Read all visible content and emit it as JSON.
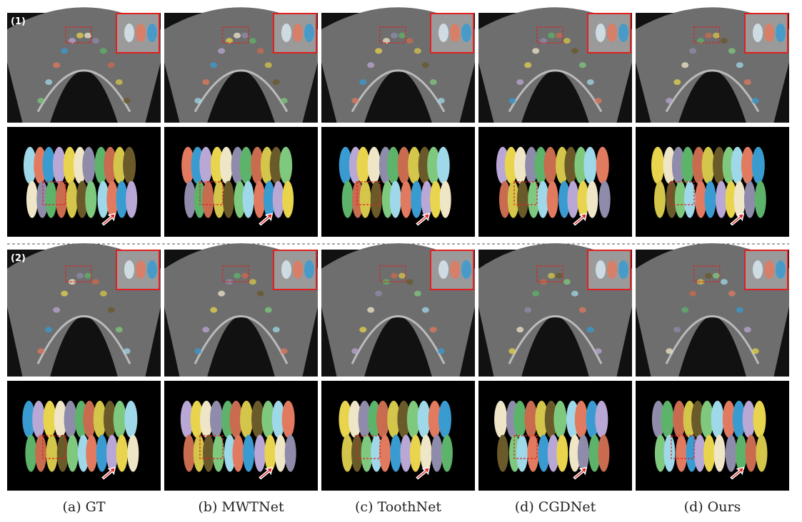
{
  "rows": [
    {
      "label": "(1)"
    },
    {
      "label": "(2)"
    }
  ],
  "columns": [
    {
      "caption": "(a) GT"
    },
    {
      "caption": "(b) MWTNet"
    },
    {
      "caption": "(c) ToothNet"
    },
    {
      "caption": "(d) CGDNet"
    },
    {
      "caption": "(d) Ours"
    }
  ]
}
